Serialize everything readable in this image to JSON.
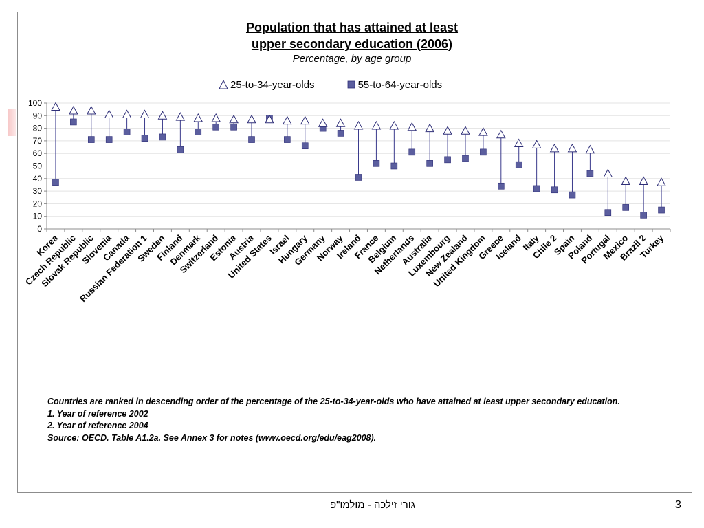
{
  "slide": {
    "footer_text": "גורי זילכה - מולמו\"פ",
    "page_number": "3"
  },
  "chart_data": {
    "type": "scatter",
    "title_lines": [
      "Population that has attained at least",
      "upper secondary education (2006)"
    ],
    "subtitle": "Percentage, by age group",
    "categories": [
      "Korea",
      "Czech Republic",
      "Slovak Republic",
      "Slovenia",
      "Canada",
      "Russian Federation 1",
      "Sweden",
      "Finland",
      "Denmark",
      "Switzerland",
      "Estonia",
      "Austria",
      "United States",
      "Israel",
      "Hungary",
      "Germany",
      "Norway",
      "Ireland",
      "France",
      "Belgium",
      "Netherlands",
      "Australia",
      "Luxembourg",
      "New Zealand",
      "United Kingdom",
      "Greece",
      "Iceland",
      "Italy",
      "Chile 2",
      "Spain",
      "Poland",
      "Portugal",
      "Mexico",
      "Brazil 2",
      "Turkey"
    ],
    "series": [
      {
        "name": "25-to-34-year-olds",
        "marker": "triangle-open",
        "values": [
          97,
          94,
          94,
          91,
          91,
          91,
          90,
          89,
          88,
          88,
          87,
          87,
          87,
          86,
          86,
          84,
          84,
          82,
          82,
          82,
          81,
          80,
          78,
          78,
          77,
          75,
          68,
          67,
          64,
          64,
          63,
          44,
          38,
          38,
          37
        ]
      },
      {
        "name": "55-to-64-year-olds",
        "marker": "square-filled",
        "values": [
          37,
          85,
          71,
          71,
          77,
          72,
          73,
          63,
          77,
          81,
          81,
          71,
          88,
          71,
          66,
          80,
          76,
          41,
          52,
          50,
          61,
          52,
          55,
          56,
          61,
          34,
          51,
          32,
          31,
          27,
          44,
          13,
          17,
          11,
          15
        ]
      }
    ],
    "yticks": [
      0,
      10,
      20,
      30,
      40,
      50,
      60,
      70,
      80,
      90,
      100
    ],
    "ylim": [
      0,
      100
    ],
    "grid": true,
    "legend_position": "top",
    "colors": {
      "marker": "#5b5e9e",
      "marker_edge": "#2f2f78",
      "connector": "#3a3a8c",
      "grid": "#e3e3e3",
      "axis": "#8c8c8c"
    },
    "notes": [
      "Countries are ranked in descending order of the percentage of the 25-to-34-year-olds who have attained at least upper secondary education.",
      "1. Year of reference 2002",
      "2. Year of reference 2004",
      "Source: OECD. Table A1.2a. See Annex 3 for notes (www.oecd.org/edu/eag2008)."
    ]
  }
}
